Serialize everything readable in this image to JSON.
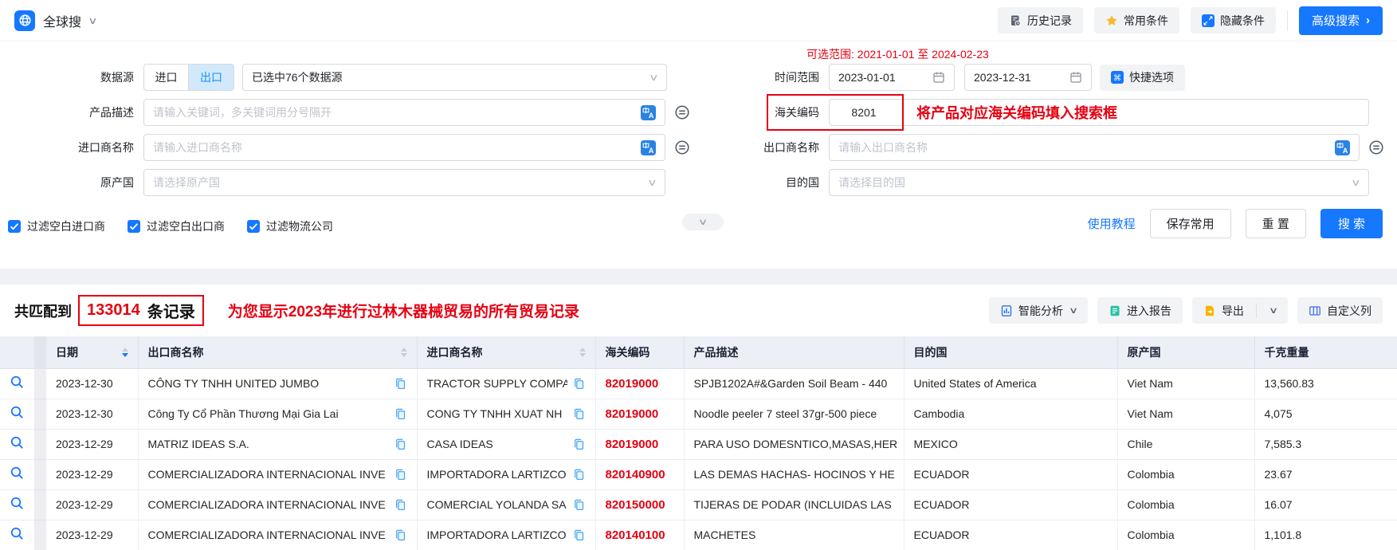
{
  "topbar": {
    "app_name": "全球搜",
    "history": "历史记录",
    "favorites": "常用条件",
    "hide_conditions": "隐藏条件",
    "advanced_search": "高级搜索",
    "advanced_arrow": "›"
  },
  "form": {
    "data_source": {
      "label": "数据源",
      "import_tab": "进口",
      "export_tab": "出口",
      "selected_value": "已选中76个数据源"
    },
    "product_desc": {
      "label": "产品描述",
      "placeholder": "请输入关键词，多关键词用分号隔开"
    },
    "importer_name": {
      "label": "进口商名称",
      "placeholder": "请输入进口商名称"
    },
    "origin_country": {
      "label": "原产国",
      "placeholder": "请选择原产国"
    },
    "date_range": {
      "label": "时间范围",
      "start": "2023-01-01",
      "end": "2023-12-31",
      "available_hint": "可选范围: 2021-01-01 至 2024-02-23",
      "quick_options": "快捷选项"
    },
    "hs_code": {
      "label": "海关编码",
      "value": "8201",
      "annotation": "将产品对应海关编码填入搜索框"
    },
    "exporter_name": {
      "label": "出口商名称",
      "placeholder": "请输入出口商名称"
    },
    "destination_country": {
      "label": "目的国",
      "placeholder": "请选择目的国"
    },
    "filters": [
      "过滤空白进口商",
      "过滤空白出口商",
      "过滤物流公司"
    ],
    "actions": {
      "tutorial": "使用教程",
      "save_common": "保存常用",
      "reset": "重 置",
      "search": "搜 索"
    }
  },
  "results": {
    "count_prefix": "共匹配到",
    "count": "133014",
    "count_suffix": "条记录",
    "annotation": "为您显示2023年进行过林木器械贸易的所有贸易记录",
    "toolbar": {
      "smart_analysis": "智能分析",
      "enter_report": "进入报告",
      "export": "导出",
      "custom_columns": "自定义列"
    }
  },
  "table": {
    "headers": [
      "日期",
      "出口商名称",
      "进口商名称",
      "海关编码",
      "产品描述",
      "目的国",
      "原产国",
      "千克重量"
    ],
    "rows": [
      {
        "date": "2023-12-30",
        "exporter": "CÔNG TY TNHH UNITED JUMBO",
        "importer": "TRACTOR SUPPLY COMPA",
        "hs_code": "82019000",
        "product": "SPJB1202A#&Garden Soil Beam - 440",
        "destination": "United States of America",
        "origin": "Viet Nam",
        "weight": "13,560.83"
      },
      {
        "date": "2023-12-30",
        "exporter": "Công Ty Cổ Phần Thương Mại Gia Lai",
        "importer": "CONG TY TNHH XUAT NH",
        "hs_code": "82019000",
        "product": "Noodle peeler 7 steel 37gr-500 piece",
        "destination": "Cambodia",
        "origin": "Viet Nam",
        "weight": "4,075"
      },
      {
        "date": "2023-12-29",
        "exporter": "MATRIZ IDEAS S.A.",
        "importer": "CASA IDEAS",
        "hs_code": "82019000",
        "product": "PARA USO DOMESNTICO,MASAS,HER",
        "destination": "MEXICO",
        "origin": "Chile",
        "weight": "7,585.3"
      },
      {
        "date": "2023-12-29",
        "exporter": "COMERCIALIZADORA INTERNACIONAL INVE",
        "importer": "IMPORTADORA LARTIZCO",
        "hs_code": "820140900",
        "product": "LAS DEMAS HACHAS- HOCINOS Y HE",
        "destination": "ECUADOR",
        "origin": "Colombia",
        "weight": "23.67"
      },
      {
        "date": "2023-12-29",
        "exporter": "COMERCIALIZADORA INTERNACIONAL INVE",
        "importer": "COMERCIAL YOLANDA SA",
        "hs_code": "820150000",
        "product": "TIJERAS DE PODAR (INCLUIDAS LAS",
        "destination": "ECUADOR",
        "origin": "Colombia",
        "weight": "16.07"
      },
      {
        "date": "2023-12-29",
        "exporter": "COMERCIALIZADORA INTERNACIONAL INVE",
        "importer": "IMPORTADORA LARTIZCO",
        "hs_code": "820140100",
        "product": "MACHETES",
        "destination": "ECUADOR",
        "origin": "Colombia",
        "weight": "1,101.8"
      }
    ]
  },
  "colors": {
    "primary": "#1677ff",
    "accent_red": "#e60012",
    "toggle_active_bg": "#d2e9fb",
    "table_header_bg": "#edeff7"
  }
}
